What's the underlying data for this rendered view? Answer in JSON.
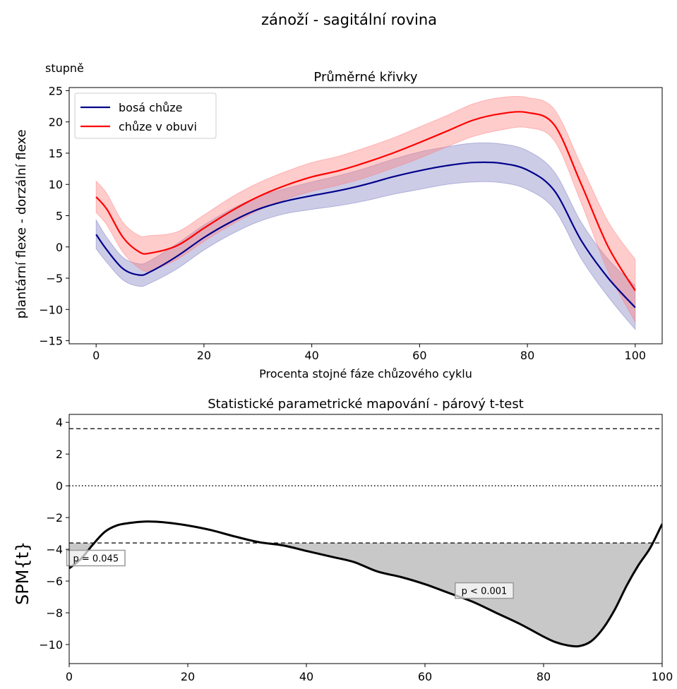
{
  "page_title": "zánoží - sagitální rovina",
  "unit_label": "stupně",
  "chart_data": [
    {
      "type": "line",
      "title": "Průměrné křivky",
      "xlabel": "Procenta stojné fáze chůzového cyklu",
      "ylabel": "plantární flexe - dorzální flexe",
      "xlim": [
        -5,
        105
      ],
      "ylim": [
        -15.5,
        25.5
      ],
      "xticks": [
        0,
        20,
        40,
        60,
        80,
        100
      ],
      "yticks": [
        -15,
        -10,
        -5,
        0,
        5,
        10,
        15,
        20,
        25
      ],
      "grid": false,
      "legend_position": "top-left",
      "x": [
        0,
        2,
        5,
        8,
        10,
        15,
        20,
        25,
        30,
        35,
        40,
        45,
        50,
        55,
        60,
        65,
        70,
        75,
        80,
        85,
        90,
        95,
        100
      ],
      "series": [
        {
          "name": "bosá chůze",
          "color": "#00008b",
          "band_color": "#7f7fc4",
          "mean": [
            2.0,
            -0.5,
            -3.5,
            -4.5,
            -4.0,
            -1.5,
            1.5,
            4.0,
            6.0,
            7.3,
            8.2,
            9.0,
            10.0,
            11.2,
            12.2,
            13.0,
            13.5,
            13.4,
            12.3,
            9.0,
            1.0,
            -5.0,
            -9.7
          ],
          "sd": [
            2.3,
            2.0,
            1.8,
            1.8,
            1.8,
            2.0,
            2.0,
            2.0,
            2.0,
            2.0,
            2.2,
            2.4,
            2.6,
            2.8,
            3.0,
            3.0,
            3.1,
            3.1,
            3.1,
            3.0,
            2.9,
            3.0,
            3.5
          ]
        },
        {
          "name": "chůze v obuvi",
          "color": "#ff0000",
          "band_color": "#ff8080",
          "mean": [
            8.0,
            6.0,
            1.5,
            -0.8,
            -1.0,
            0.2,
            3.0,
            5.7,
            8.0,
            9.8,
            11.2,
            12.2,
            13.5,
            15.0,
            16.7,
            18.5,
            20.3,
            21.3,
            21.5,
            19.5,
            10.0,
            0.0,
            -7.0
          ],
          "sd": [
            2.5,
            2.5,
            2.4,
            2.6,
            2.8,
            2.2,
            2.1,
            2.2,
            2.2,
            2.2,
            2.3,
            2.3,
            2.4,
            2.4,
            2.5,
            2.5,
            2.6,
            2.6,
            2.4,
            2.5,
            3.0,
            4.0,
            5.0
          ]
        }
      ]
    },
    {
      "type": "line",
      "title": "Statistické parametrické mapování - párový t-test",
      "xlabel": "",
      "ylabel": "SPM{t}",
      "xlim": [
        0,
        100
      ],
      "ylim": [
        -11.2,
        4.5
      ],
      "xticks": [
        0,
        20,
        40,
        60,
        80,
        100
      ],
      "yticks": [
        -10,
        -8,
        -6,
        -4,
        -2,
        0,
        2,
        4
      ],
      "grid": false,
      "threshold": 3.6,
      "x": [
        0,
        2,
        4,
        6,
        8,
        10,
        13,
        16,
        20,
        24,
        28,
        32,
        36,
        40,
        44,
        48,
        52,
        56,
        60,
        64,
        68,
        72,
        76,
        80,
        82,
        84,
        86,
        88,
        90,
        92,
        94,
        96,
        98,
        100
      ],
      "series": [
        {
          "color": "#000000",
          "values": [
            -5.2,
            -4.6,
            -3.7,
            -2.9,
            -2.5,
            -2.35,
            -2.25,
            -2.3,
            -2.5,
            -2.8,
            -3.2,
            -3.55,
            -3.75,
            -4.1,
            -4.45,
            -4.8,
            -5.4,
            -5.75,
            -6.2,
            -6.75,
            -7.3,
            -8.0,
            -8.7,
            -9.5,
            -9.85,
            -10.05,
            -10.1,
            -9.8,
            -9.0,
            -7.8,
            -6.3,
            -5.0,
            -3.9,
            -2.4
          ]
        }
      ],
      "annotations": [
        {
          "text": "p = 0.045",
          "x": 4.5,
          "y": -4.55
        },
        {
          "text": "p < 0.001",
          "x": 70,
          "y": -6.6
        }
      ]
    }
  ]
}
